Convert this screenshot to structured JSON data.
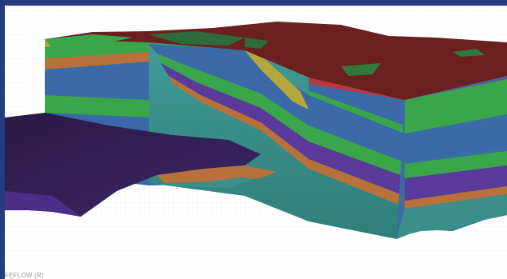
{
  "window": {
    "frame_color": "#243b80"
  },
  "viewport": {
    "description_icon": "3d-geological-model",
    "colors": {
      "top_surface": "#6b1f1f",
      "green_layer": "#3aa64a",
      "blue_layer": "#3a6aa8",
      "purple_layer": "#5a3a9a",
      "orange_layer": "#b8713a",
      "teal_layer": "#3a8f8a",
      "dark_purple_surface": "#2a1a45",
      "olive_layer": "#b6a83a"
    }
  },
  "footer": {
    "watermark": "FEFLOW (R)"
  }
}
